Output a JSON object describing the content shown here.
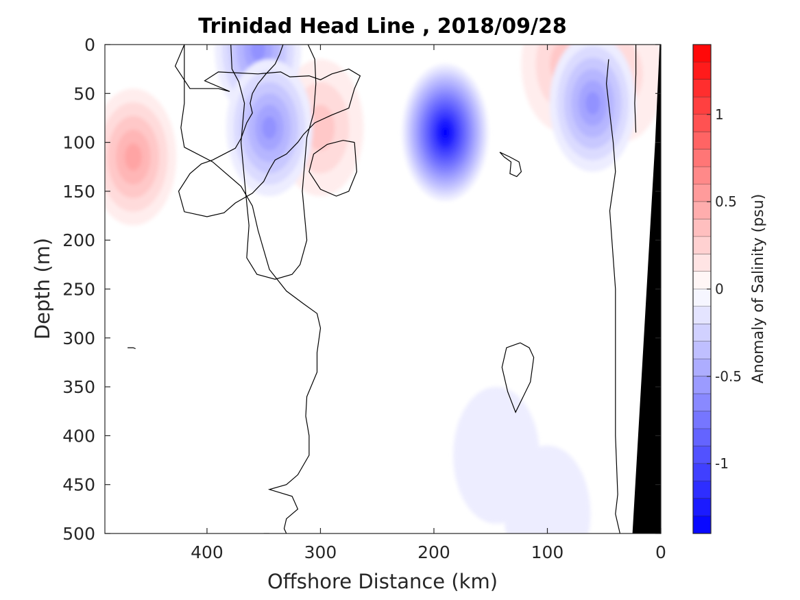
{
  "chart_data": {
    "type": "heatmap",
    "title": "Trinidad Head Line , 2018/09/28",
    "xlabel": "Offshore Distance (km)",
    "ylabel": "Depth (m)",
    "xlim": [
      490,
      0
    ],
    "ylim": [
      0,
      500
    ],
    "x_reversed": true,
    "y_reversed": true,
    "x_ticks": [
      400,
      300,
      200,
      100,
      0
    ],
    "x_tick_labels": [
      "400",
      "300",
      "200",
      "100",
      "0"
    ],
    "y_ticks": [
      0,
      50,
      100,
      150,
      200,
      250,
      300,
      350,
      400,
      450,
      500
    ],
    "y_tick_labels": [
      "0",
      "50",
      "100",
      "150",
      "200",
      "250",
      "300",
      "350",
      "400",
      "450",
      "500"
    ],
    "colorbar": {
      "label": "Anomaly of Salinity (psu)",
      "limits": [
        -1.4,
        1.4
      ],
      "step": 0.1,
      "ticks": [
        1,
        0.5,
        0,
        -0.5,
        -1
      ],
      "tick_labels": [
        "1",
        "0.5",
        "0",
        "-0.5",
        "-1"
      ],
      "positive_color": "#ff0000",
      "negative_color": "#0000ff",
      "zero_color": "#ffffff"
    },
    "anomaly_features": [
      {
        "x": 465,
        "y": 115,
        "value": 0.45
      },
      {
        "x": 300,
        "y": 85,
        "value": 0.3
      },
      {
        "x": 35,
        "y": 30,
        "value": 0.2
      },
      {
        "x": 85,
        "y": 20,
        "value": 0.25
      },
      {
        "x": 190,
        "y": 90,
        "value": -1.35
      },
      {
        "x": 355,
        "y": 5,
        "value": -0.6
      },
      {
        "x": 345,
        "y": 85,
        "value": -0.55
      },
      {
        "x": 60,
        "y": 60,
        "value": -0.6
      },
      {
        "x": 145,
        "y": 420,
        "value": -0.1
      },
      {
        "x": 100,
        "y": 480,
        "value": -0.1
      }
    ],
    "zero_contours": [
      [
        [
          420,
          0
        ],
        [
          428,
          22
        ],
        [
          415,
          45
        ],
        [
          390,
          45
        ],
        [
          380,
          48
        ],
        [
          402,
          37
        ],
        [
          390,
          28
        ],
        [
          355,
          30
        ],
        [
          335,
          28
        ],
        [
          327,
          33
        ],
        [
          310,
          32
        ],
        [
          300,
          36
        ],
        [
          290,
          30
        ],
        [
          275,
          25
        ],
        [
          265,
          32
        ],
        [
          270,
          45
        ],
        [
          275,
          65
        ],
        [
          290,
          72
        ],
        [
          305,
          80
        ],
        [
          315,
          92
        ],
        [
          320,
          100
        ],
        [
          330,
          112
        ],
        [
          340,
          118
        ],
        [
          345,
          128
        ],
        [
          350,
          140
        ],
        [
          360,
          152
        ],
        [
          375,
          162
        ],
        [
          385,
          172
        ],
        [
          400,
          176
        ],
        [
          420,
          171
        ],
        [
          425,
          150
        ],
        [
          415,
          132
        ],
        [
          405,
          122
        ],
        [
          395,
          118
        ],
        [
          385,
          112
        ],
        [
          375,
          106
        ],
        [
          370,
          96
        ],
        [
          365,
          80
        ],
        [
          360,
          70
        ],
        [
          362,
          60
        ],
        [
          360,
          50
        ],
        [
          355,
          40
        ],
        [
          348,
          30
        ],
        [
          340,
          20
        ],
        [
          336,
          10
        ],
        [
          333,
          0
        ]
      ],
      [
        [
          311,
          0
        ],
        [
          305,
          15
        ],
        [
          304,
          40
        ],
        [
          306,
          70
        ],
        [
          312,
          95
        ],
        [
          316,
          150
        ],
        [
          312,
          200
        ],
        [
          318,
          225
        ],
        [
          325,
          235
        ],
        [
          340,
          240
        ],
        [
          356,
          235
        ],
        [
          365,
          218
        ],
        [
          363,
          185
        ],
        [
          366,
          150
        ],
        [
          370,
          100
        ],
        [
          367,
          60
        ],
        [
          372,
          38
        ],
        [
          378,
          25
        ],
        [
          379,
          0
        ]
      ],
      [
        [
          420,
          0
        ],
        [
          420,
          30
        ],
        [
          420,
          60
        ],
        [
          423,
          85
        ],
        [
          420,
          105
        ],
        [
          395,
          120
        ],
        [
          370,
          145
        ],
        [
          360,
          165
        ],
        [
          355,
          190
        ],
        [
          345,
          230
        ],
        [
          330,
          252
        ],
        [
          315,
          265
        ],
        [
          303,
          275
        ],
        [
          300,
          290
        ],
        [
          303,
          315
        ],
        [
          303,
          335
        ],
        [
          312,
          360
        ],
        [
          313,
          380
        ],
        [
          310,
          400
        ],
        [
          310,
          420
        ],
        [
          320,
          440
        ],
        [
          330,
          450
        ],
        [
          345,
          455
        ],
        [
          325,
          462
        ],
        [
          320,
          475
        ],
        [
          330,
          485
        ],
        [
          332,
          495
        ],
        [
          330,
          500
        ]
      ],
      [
        [
          270,
          100
        ],
        [
          268,
          130
        ],
        [
          275,
          150
        ],
        [
          286,
          155
        ],
        [
          300,
          148
        ],
        [
          310,
          130
        ],
        [
          306,
          112
        ],
        [
          294,
          102
        ],
        [
          280,
          98
        ],
        [
          270,
          100
        ]
      ],
      [
        [
          142,
          110
        ],
        [
          133,
          115
        ],
        [
          125,
          120
        ],
        [
          123,
          130
        ],
        [
          127,
          135
        ],
        [
          133,
          132
        ],
        [
          132,
          120
        ],
        [
          138,
          115
        ],
        [
          142,
          110
        ]
      ],
      [
        [
          124,
          305
        ],
        [
          136,
          310
        ],
        [
          140,
          330
        ],
        [
          135,
          355
        ],
        [
          128,
          376
        ],
        [
          115,
          345
        ],
        [
          112,
          320
        ],
        [
          116,
          310
        ],
        [
          124,
          305
        ]
      ],
      [
        [
          46,
          15
        ],
        [
          48,
          40
        ],
        [
          45,
          70
        ],
        [
          42,
          100
        ],
        [
          40,
          130
        ],
        [
          45,
          170
        ],
        [
          40,
          250
        ],
        [
          40,
          350
        ],
        [
          40,
          400
        ],
        [
          38,
          460
        ],
        [
          40,
          480
        ],
        [
          36,
          500
        ]
      ],
      [
        [
          22,
          0
        ],
        [
          22,
          30
        ],
        [
          23,
          60
        ],
        [
          22,
          90
        ]
      ],
      [
        [
          470,
          310
        ],
        [
          465,
          310
        ],
        [
          463,
          311
        ]
      ],
      [
        [
          345,
          500
        ],
        [
          350,
          500
        ]
      ]
    ],
    "bathymetry": [
      [
        25,
        500
      ],
      [
        20,
        400
      ],
      [
        15,
        300
      ],
      [
        10,
        200
      ],
      [
        5,
        100
      ],
      [
        1,
        0
      ],
      [
        0,
        0
      ],
      [
        0,
        500
      ]
    ]
  }
}
